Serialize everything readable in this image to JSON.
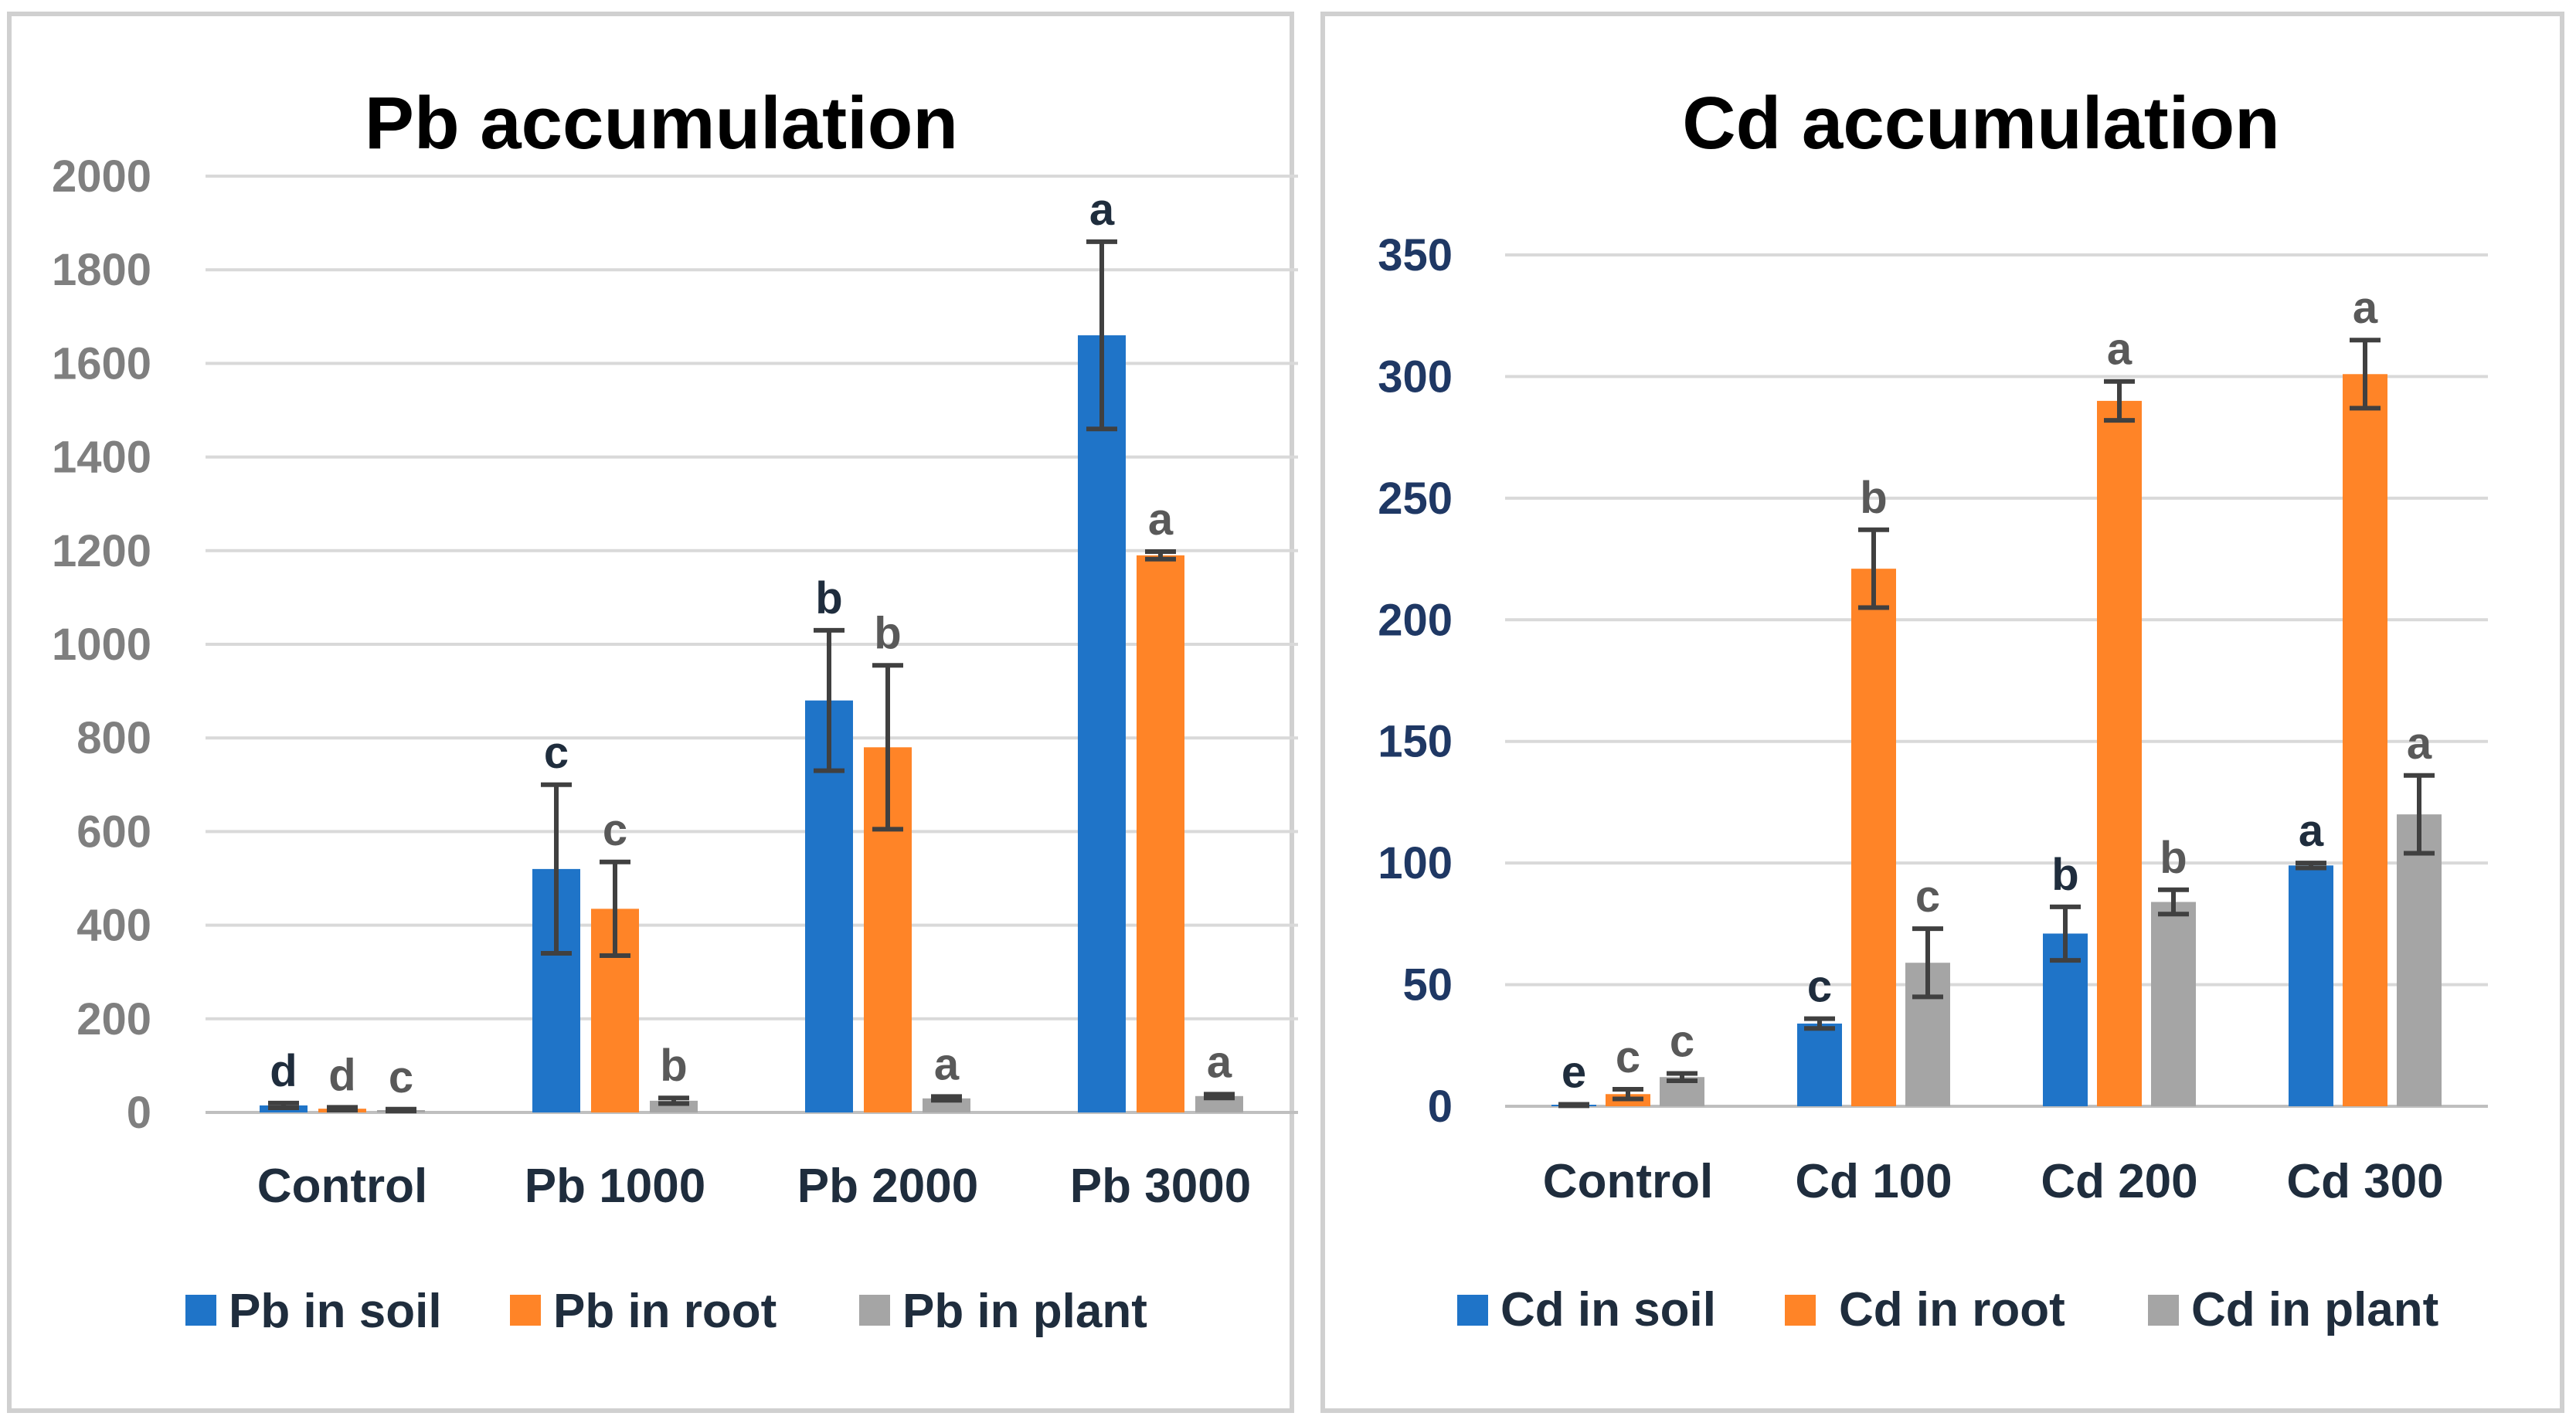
{
  "colors": {
    "soil": "#1f74c8",
    "root": "#ff8427",
    "plant": "#a5a5a5",
    "label_dark": "#1f2d3d",
    "label_gray": "#595959",
    "ytick_left": "#7f7f7f",
    "ytick_right": "#1f3864"
  },
  "chart_data": [
    {
      "type": "bar",
      "title": "Pb accumulation",
      "categories": [
        "Control",
        "Pb 1000",
        "Pb 2000",
        "Pb 3000"
      ],
      "ylim": [
        0,
        2000
      ],
      "yticks": [
        0,
        200,
        400,
        600,
        800,
        1000,
        1200,
        1400,
        1600,
        1800,
        2000
      ],
      "ytick_labels": [
        "0",
        "200",
        "400",
        "600",
        "800",
        "1000",
        "1200",
        "1400",
        "1600",
        "1800",
        "2000"
      ],
      "grid": true,
      "legend_position": "bottom",
      "series": [
        {
          "name": "Pb in soil",
          "color": "#1f74c8",
          "values": [
            15,
            520,
            880,
            1660
          ],
          "errors": [
            5,
            180,
            150,
            200
          ],
          "labels": [
            "d",
            "c",
            "b",
            "a"
          ]
        },
        {
          "name": "Pb in root",
          "color": "#ff8427",
          "values": [
            8,
            435,
            780,
            1190
          ],
          "errors": [
            3,
            100,
            175,
            8
          ],
          "labels": [
            "d",
            "c",
            "b",
            "a"
          ]
        },
        {
          "name": "Pb in plant",
          "color": "#a5a5a5",
          "values": [
            5,
            25,
            30,
            35
          ],
          "errors": [
            2,
            6,
            4,
            4
          ],
          "labels": [
            "c",
            "b",
            "a",
            "a"
          ]
        }
      ]
    },
    {
      "type": "bar",
      "title": "Cd accumulation",
      "categories": [
        "Control",
        "Cd 100",
        "Cd 200",
        "Cd 300"
      ],
      "ylim": [
        0,
        350
      ],
      "yticks": [
        0,
        50,
        100,
        150,
        200,
        250,
        300,
        350
      ],
      "ytick_labels": [
        "0",
        "50",
        "100",
        "150",
        "200",
        "250",
        "300",
        "350"
      ],
      "grid": true,
      "legend_position": "bottom",
      "series": [
        {
          "name": "Cd in soil",
          "color": "#1f74c8",
          "values": [
            0.5,
            34,
            71,
            99
          ],
          "errors": [
            0.3,
            2,
            11,
            1
          ],
          "labels": [
            "e",
            "c",
            "b",
            "a"
          ]
        },
        {
          "name": "Cd in root",
          "color": "#ff8427",
          "values": [
            5,
            221,
            290,
            301
          ],
          "errors": [
            2,
            16,
            8,
            14
          ],
          "labels": [
            "c",
            "b",
            "a",
            "a"
          ]
        },
        {
          "name": "Cd in plant",
          "color": "#a5a5a5",
          "values": [
            12,
            59,
            84,
            120
          ],
          "errors": [
            1.5,
            14,
            5,
            16
          ],
          "labels": [
            "c",
            "c",
            "b",
            "a"
          ]
        }
      ]
    }
  ]
}
